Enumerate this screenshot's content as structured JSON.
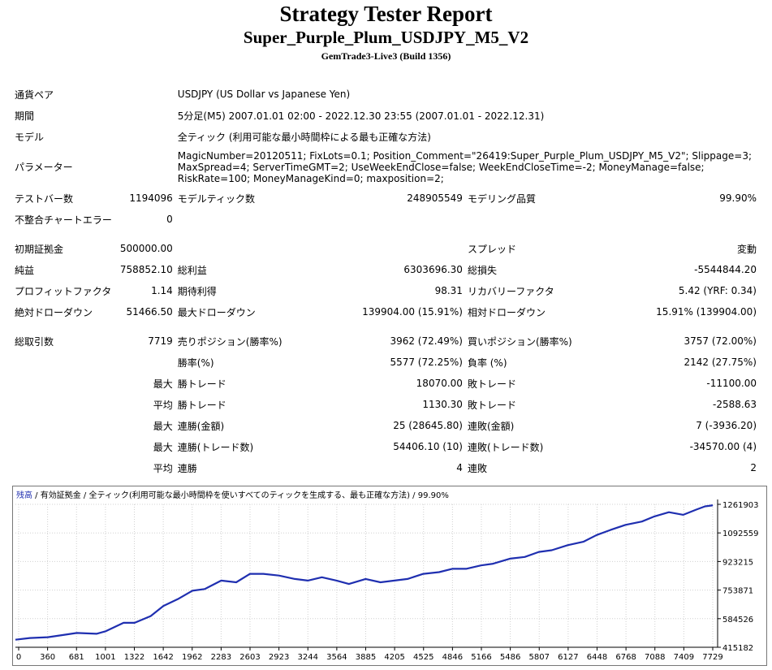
{
  "report": {
    "title": "Strategy Tester Report",
    "ea_name": "Super_Purple_Plum_USDJPY_M5_V2",
    "server": "GemTrade3-Live3 (Build 1356)"
  },
  "info": {
    "pair_label": "通貨ペア",
    "pair_value": "USDJPY (US Dollar vs Japanese Yen)",
    "period_label": "期間",
    "period_value": "5分足(M5) 2007.01.01 02:00 - 2022.12.30 23:55 (2007.01.01 - 2022.12.31)",
    "model_label": "モデル",
    "model_value": "全ティック (利用可能な最小時間枠による最も正確な方法)",
    "params_label": "パラメーター",
    "params_value": "MagicNumber=20120511; FixLots=0.1; Position_Comment=\"26419:Super_Purple_Plum_USDJPY_M5_V2\"; Slippage=3; MaxSpread=4; ServerTimeGMT=2; UseWeekEndClose=false; WeekEndCloseTime=-2; MoneyManage=false; RiskRate=100; MoneyManageKind=0; maxposition=2;"
  },
  "stats": {
    "bars_label": "テストバー数",
    "bars": "1194096",
    "ticks_label": "モデルティック数",
    "ticks": "248905549",
    "quality_label": "モデリング品質",
    "quality": "99.90%",
    "mismatch_label": "不整合チャートエラー",
    "mismatch": "0",
    "deposit_label": "初期証拠金",
    "deposit": "500000.00",
    "spread_label": "スプレッド",
    "spread": "変動",
    "net_label": "純益",
    "net": "758852.10",
    "gross_profit_label": "総利益",
    "gross_profit": "6303696.30",
    "gross_loss_label": "総損失",
    "gross_loss": "-5544844.20",
    "pf_label": "プロフィットファクタ",
    "pf": "1.14",
    "expected_label": "期待利得",
    "expected": "98.31",
    "recovery_label": "リカバリーファクタ",
    "recovery": "5.42 (YRF: 0.34)",
    "abs_dd_label": "絶対ドローダウン",
    "abs_dd": "51466.50",
    "max_dd_label": "最大ドローダウン",
    "max_dd": "139904.00 (15.91%)",
    "rel_dd_label": "相対ドローダウン",
    "rel_dd": "15.91% (139904.00)",
    "total_trades_label": "総取引数",
    "total_trades": "7719",
    "short_label": "売りポジション(勝率%)",
    "short": "3962 (72.49%)",
    "long_label": "買いポジション(勝率%)",
    "long": "3757 (72.00%)",
    "win_rate_label": "勝率(%)",
    "win_rate": "5577 (72.25%)",
    "loss_rate_label": "負率 (%)",
    "loss_rate": "2142 (27.75%)",
    "max_label": "最大",
    "avg_label": "平均",
    "win_trade_label": "勝トレード",
    "max_win": "18070.00",
    "loss_trade_label": "敗トレード",
    "max_loss": "-11100.00",
    "avg_win": "1130.30",
    "avg_loss": "-2588.63",
    "cons_win_amt_label": "連勝(金額)",
    "cons_win_amt": "25 (28645.80)",
    "cons_loss_amt_label": "連敗(金額)",
    "cons_loss_amt": "7 (-3936.20)",
    "cons_win_cnt_label": "連勝(トレード数)",
    "cons_win_cnt": "54406.10 (10)",
    "cons_loss_cnt_label": "連敗(トレード数)",
    "cons_loss_cnt": "-34570.00 (4)",
    "avg_cons_win_label": "連勝",
    "avg_cons_win": "4",
    "avg_cons_loss_label": "連敗",
    "avg_cons_loss": "2"
  },
  "chart_header": {
    "balance": "残高",
    "sep1": " / ",
    "equity": "有効証拠金",
    "sep2": " / ",
    "model": "全ティック(利用可能な最小時間枠を使いすべてのティックを生成する、最も正確な方法)",
    "sep3": " / ",
    "quality": "99.90%"
  },
  "chart_data": {
    "type": "line",
    "series": [
      {
        "name": "残高",
        "x": [
          0,
          160,
          360,
          560,
          681,
          900,
          1001,
          1200,
          1322,
          1500,
          1642,
          1800,
          1962,
          2100,
          2283,
          2450,
          2603,
          2750,
          2923,
          3100,
          3244,
          3400,
          3564,
          3700,
          3885,
          4050,
          4205,
          4350,
          4525,
          4700,
          4846,
          5000,
          5166,
          5300,
          5486,
          5650,
          5807,
          5950,
          6127,
          6300,
          6448,
          6600,
          6768,
          6950,
          7088,
          7250,
          7409,
          7550,
          7650,
          7729,
          7719
        ],
        "y": [
          460000,
          470000,
          475000,
          490000,
          500000,
          495000,
          510000,
          560000,
          560000,
          600000,
          660000,
          700000,
          750000,
          760000,
          810000,
          800000,
          850000,
          850000,
          840000,
          820000,
          810000,
          830000,
          810000,
          790000,
          820000,
          800000,
          810000,
          820000,
          850000,
          860000,
          880000,
          880000,
          900000,
          910000,
          940000,
          950000,
          980000,
          990000,
          1020000,
          1040000,
          1080000,
          1110000,
          1140000,
          1160000,
          1190000,
          1215000,
          1200000,
          1230000,
          1250000,
          1255000,
          1258000
        ]
      }
    ],
    "x_ticks": [
      "0",
      "360",
      "681",
      "1001",
      "1322",
      "1642",
      "1962",
      "2283",
      "2603",
      "2923",
      "3244",
      "3564",
      "3885",
      "4205",
      "4525",
      "4846",
      "5166",
      "5486",
      "5807",
      "6127",
      "6448",
      "6768",
      "7088",
      "7409",
      "7729"
    ],
    "y_ticks": [
      "1261903",
      "1092559",
      "923215",
      "753871",
      "584526",
      "415182"
    ],
    "xlim": [
      0,
      7790
    ],
    "ylim": [
      415182,
      1261903
    ],
    "grid": true,
    "line_color": "#1f2fb0"
  }
}
